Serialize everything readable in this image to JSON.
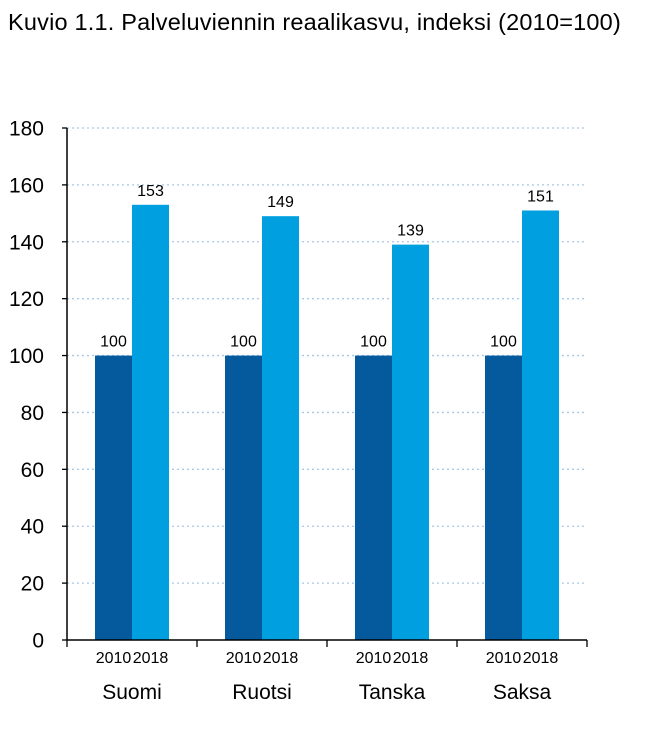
{
  "title": "Kuvio 1.1. Palveluviennin reaalikasvu, indeksi (2010=100)",
  "colors": {
    "s2010": "#045A9C",
    "s2018": "#00A0E0",
    "grid": "#A9C8E4",
    "axis": "#000000"
  },
  "chart_data": {
    "type": "bar",
    "title": "Kuvio 1.1. Palveluviennin reaalikasvu, indeksi (2010=100)",
    "categories": [
      "Suomi",
      "Ruotsi",
      "Tanska",
      "Saksa"
    ],
    "series": [
      {
        "name": "2010",
        "values": [
          100,
          100,
          100,
          100
        ]
      },
      {
        "name": "2018",
        "values": [
          153,
          149,
          139,
          151
        ]
      }
    ],
    "data_labels": [
      [
        "100",
        "100",
        "100",
        "100"
      ],
      [
        "153",
        "149",
        "139",
        "151"
      ]
    ],
    "yticks": [
      0,
      20,
      40,
      60,
      80,
      100,
      120,
      140,
      160,
      180
    ],
    "ylim": [
      0,
      180
    ],
    "grid": true,
    "legend": "none"
  }
}
